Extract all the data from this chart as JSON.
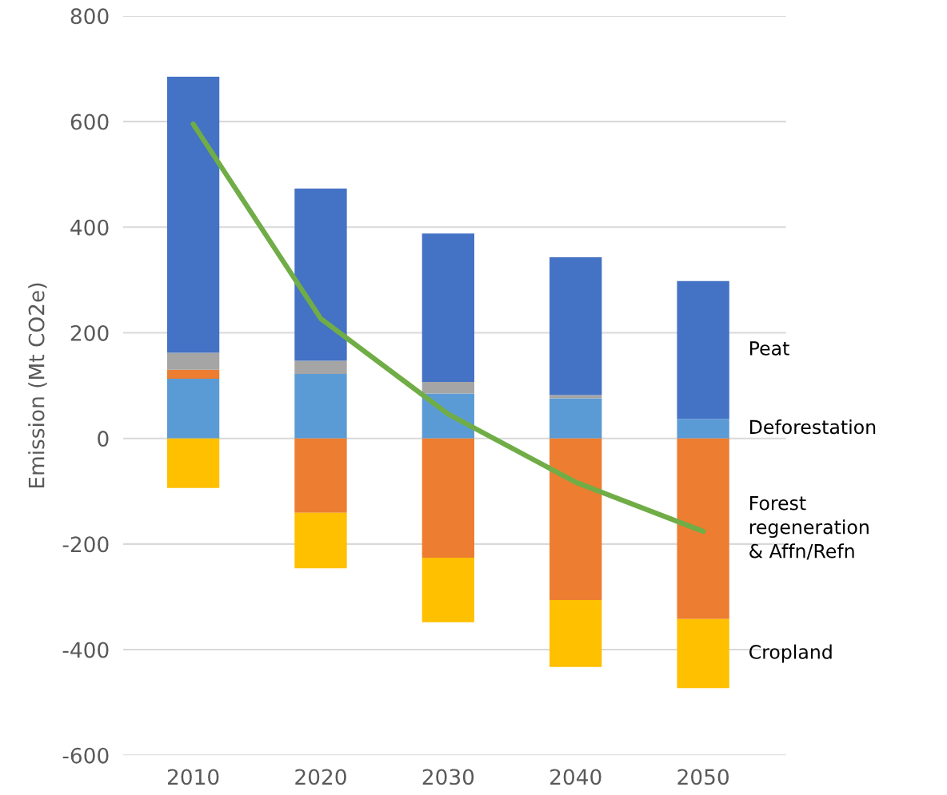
{
  "chart_data": {
    "type": "bar",
    "stacked": true,
    "ylabel": "Emission (Mt CO2e)",
    "categories": [
      "2010",
      "2020",
      "2030",
      "2040",
      "2050"
    ],
    "series": [
      {
        "name": "Deforestation",
        "color": "#5b9bd5",
        "values": [
          113,
          122,
          85,
          76,
          37
        ]
      },
      {
        "name": "Forest\nregeneration\n& Affn/Refn",
        "color": "#ed7d31",
        "values": [
          17,
          -141,
          -226,
          -306,
          -342
        ]
      },
      {
        "color": "#a5a5a5",
        "values": [
          32,
          25,
          22,
          6,
          0
        ]
      },
      {
        "name": "Peat",
        "color": "#4472c4",
        "values": [
          523,
          326,
          281,
          261,
          261
        ]
      },
      {
        "name": "Cropland",
        "color": "#ffc000",
        "values": [
          -94,
          -105,
          -122,
          -127,
          -131
        ]
      },
      {
        "type": "line",
        "color": "#70ad47",
        "values": [
          595,
          227,
          46,
          -83,
          -176
        ]
      }
    ],
    "ylim": [
      -600,
      800
    ],
    "yticks": [
      -600,
      -400,
      -200,
      0,
      200,
      400,
      600,
      800
    ],
    "grid": "y"
  }
}
